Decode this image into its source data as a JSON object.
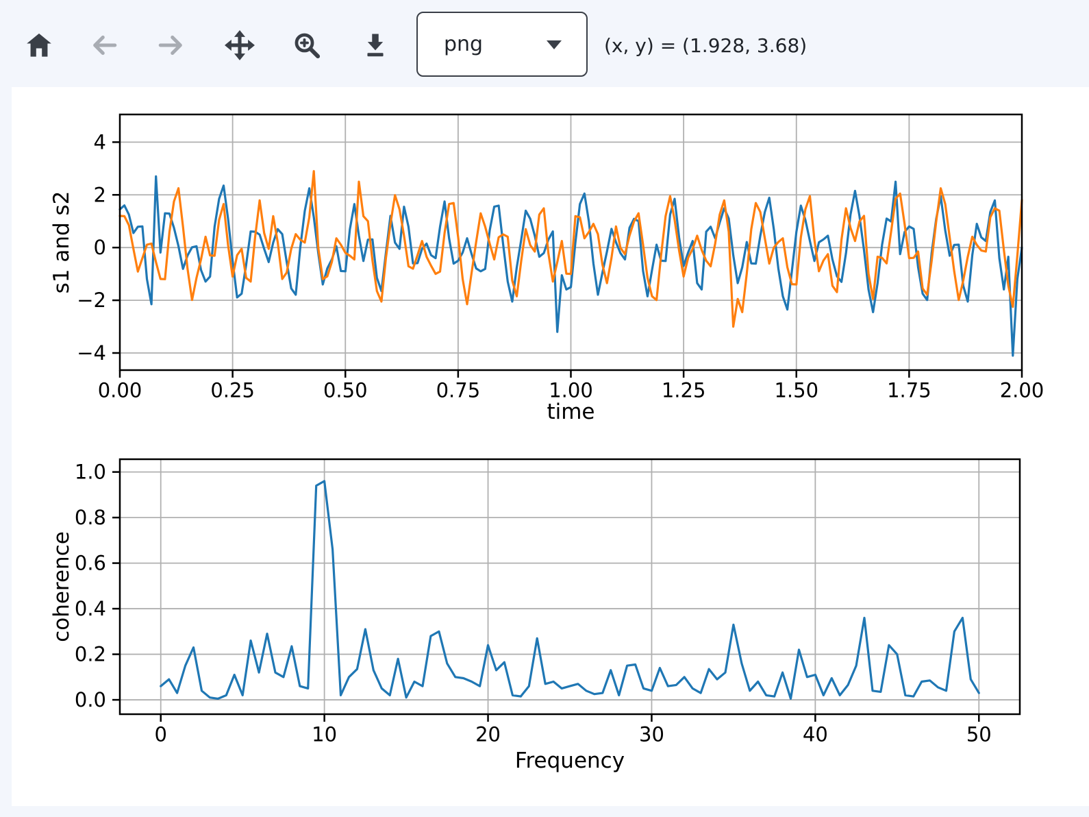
{
  "toolbar": {
    "buttons": [
      {
        "name": "home",
        "icon": "home-icon",
        "enabled": true
      },
      {
        "name": "back",
        "icon": "arrow-left-icon",
        "enabled": false
      },
      {
        "name": "forward",
        "icon": "arrow-right-icon",
        "enabled": false
      },
      {
        "name": "pan",
        "icon": "move-icon",
        "enabled": true
      },
      {
        "name": "zoom",
        "icon": "zoom-in-icon",
        "enabled": true
      },
      {
        "name": "download",
        "icon": "download-icon",
        "enabled": true
      }
    ],
    "format_select": {
      "value": "png"
    },
    "coordinate_readout": "(x, y) = (1.928, 3.68)"
  },
  "colors": {
    "page_background": "#f3f6fc",
    "figure_background": "#ffffff",
    "icon_active": "#3a3f47",
    "icon_disabled": "#a8acb3",
    "grid": "#b0b0b0",
    "spine": "#000000",
    "series_blue": "#1f77b4",
    "series_orange": "#ff7f0e"
  },
  "chart_data": [
    {
      "type": "line",
      "title": "",
      "xlabel": "time",
      "ylabel": "s1 and s2",
      "xlim": [
        0,
        2
      ],
      "ylim": [
        -4.65,
        5.05
      ],
      "grid": true,
      "legend": "none",
      "xticks": {
        "values": [
          0,
          0.25,
          0.5,
          0.75,
          1.0,
          1.25,
          1.5,
          1.75,
          2.0
        ],
        "labels": [
          "0.00",
          "0.25",
          "0.50",
          "0.75",
          "1.00",
          "1.25",
          "1.50",
          "1.75",
          "2.00"
        ]
      },
      "yticks": {
        "values": [
          -4,
          -2,
          0,
          2,
          4
        ],
        "labels": [
          "−4",
          "−2",
          "0",
          "2",
          "4"
        ]
      },
      "x_start": 0,
      "x_step": 0.01,
      "series": [
        {
          "name": "s1",
          "color": "#1f77b4",
          "values": [
            1.45,
            1.6,
            1.25,
            0.55,
            0.79,
            0.8,
            -1.19,
            -2.15,
            2.7,
            -0.19,
            1.3,
            1.29,
            0.75,
            0.05,
            -0.81,
            -0.3,
            0.01,
            0.05,
            -0.85,
            -1.29,
            -1.1,
            0.79,
            1.85,
            2.35,
            1.09,
            -0.5,
            -1.89,
            -1.75,
            -0.65,
            0.61,
            0.6,
            0.49,
            -0.05,
            -0.55,
            0.19,
            0.7,
            0.51,
            -0.55,
            -1.55,
            -1.79,
            0.0,
            1.39,
            2.25,
            1.15,
            -0.21,
            -1.4,
            -0.79,
            -0.45,
            0.05,
            -0.89,
            -0.9,
            0.69,
            1.65,
            0.45,
            -0.51,
            0.3,
            0.31,
            -1.15,
            -1.65,
            -0.19,
            1.2,
            0.19,
            -0.05,
            1.55,
            0.79,
            -0.6,
            -0.59,
            -0.05,
            0.15,
            -0.29,
            -0.4,
            0.79,
            1.75,
            0.35,
            -0.61,
            -0.5,
            -0.19,
            0.35,
            -0.25,
            -0.79,
            -0.9,
            -0.81,
            0.65,
            1.55,
            1.59,
            0.1,
            -1.29,
            -2.05,
            -0.75,
            0.31,
            1.4,
            1.09,
            0.45,
            -0.35,
            -0.21,
            0.3,
            0.61,
            -3.2,
            -1.05,
            -1.59,
            -1.5,
            0.19,
            1.65,
            2.05,
            0.99,
            -0.6,
            -1.79,
            -0.95,
            -0.15,
            0.71,
            0.2,
            -0.21,
            -0.45,
            0.75,
            1.09,
            1.0,
            -0.89,
            -1.85,
            -0.85,
            0.11,
            -0.5,
            -0.51,
            1.25,
            1.85,
            0.39,
            -0.7,
            -0.19,
            0.25,
            -1.35,
            -1.59,
            0.6,
            0.79,
            0.35,
            0.95,
            1.49,
            1.1,
            -0.29,
            -1.35,
            -0.75,
            0.21,
            -0.6,
            -0.61,
            0.45,
            1.35,
            1.89,
            0.7,
            -0.79,
            -1.85,
            -2.35,
            -0.89,
            0.6,
            1.59,
            1.05,
            0.25,
            -0.51,
            0.2,
            0.31,
            0.45,
            -0.45,
            -1.09,
            -1.3,
            -0.21,
            1.25,
            2.15,
            1.19,
            -0.1,
            -1.59,
            -2.45,
            -1.35,
            0.11,
            1.1,
            0.99,
            2.5,
            -0.25,
            0.59,
            0.8,
            0.71,
            -0.75,
            -1.75,
            -1.99,
            -0.2,
            1.09,
            1.95,
            0.65,
            -0.31,
            0.1,
            0.11,
            -1.45,
            -2.05,
            -0.29,
            0.9,
            0.39,
            0.25,
            1.35,
            1.79,
            -0.4,
            -1.59,
            -0.35,
            -4.1,
            -1.19,
            0.0
          ]
        },
        {
          "name": "s2",
          "color": "#ff7f0e",
          "values": [
            1.2,
            1.19,
            0.85,
            -0.05,
            -0.91,
            -0.4,
            0.11,
            0.15,
            -0.55,
            -1.19,
            -1.2,
            0.59,
            1.75,
            2.25,
            0.79,
            -0.8,
            -1.99,
            -1.15,
            -0.45,
            0.41,
            -0.3,
            -0.31,
            1.05,
            1.65,
            0.09,
            -1.1,
            -0.29,
            -0.05,
            -1.15,
            -1.29,
            0.4,
            1.79,
            0.55,
            -0.05,
            1.19,
            0.2,
            -1.19,
            -0.95,
            -0.05,
            0.51,
            0.3,
            0.19,
            1.15,
            2.9,
            -0.01,
            -1.2,
            -1.09,
            -0.55,
            0.35,
            0.11,
            -0.2,
            -0.31,
            -0.45,
            2.5,
            1.19,
            1.0,
            -0.49,
            -1.65,
            -2.05,
            -0.39,
            0.9,
            1.99,
            1.45,
            0.45,
            -0.71,
            -0.8,
            -0.29,
            0.25,
            -0.35,
            -0.69,
            -1.0,
            -0.91,
            0.55,
            1.65,
            1.69,
            0.4,
            -1.19,
            -2.15,
            -0.95,
            0.21,
            1.3,
            0.79,
            0.15,
            -0.45,
            0.39,
            0.5,
            0.41,
            -1.25,
            -1.85,
            -0.49,
            0.7,
            0.09,
            -0.15,
            1.25,
            1.49,
            -0.2,
            -1.29,
            -0.55,
            0.25,
            -0.99,
            -1.0,
            1.19,
            1.15,
            0.35,
            0.59,
            0.9,
            0.51,
            -0.65,
            -1.35,
            -0.39,
            0.8,
            -0.01,
            -0.25,
            0.45,
            0.99,
            1.3,
            0.11,
            -1.15,
            -1.85,
            -1.99,
            -0.3,
            1.19,
            1.95,
            1.05,
            -0.11,
            -1.1,
            -0.39,
            -0.05,
            0.45,
            -0.09,
            -0.5,
            -0.71,
            0.15,
            1.25,
            1.79,
            0.6,
            -3.0,
            -1.95,
            -2.45,
            -0.99,
            0.7,
            1.69,
            1.35,
            0.35,
            -0.61,
            0.0,
            0.21,
            0.35,
            -0.75,
            -1.39,
            -1.4,
            0.39,
            1.45,
            1.95,
            0.29,
            -0.9,
            -0.49,
            -0.25,
            -1.45,
            -1.69,
            0.3,
            1.49,
            0.75,
            0.25,
            0.99,
            1.2,
            -0.99,
            -1.95,
            -0.35,
            -0.39,
            -0.6,
            0.59,
            1.85,
            2.05,
            0.89,
            -0.4,
            -0.39,
            -0.15,
            -1.55,
            -1.79,
            -0.5,
            0.99,
            2.25,
            1.65,
            0.39,
            -0.9,
            -1.99,
            -1.25,
            -0.35,
            0.41,
            0.1,
            -0.11,
            -0.15,
            1.15,
            1.49,
            1.4,
            -0.09,
            -1.45,
            -2.25,
            -0.3,
            1.8
          ]
        }
      ]
    },
    {
      "type": "line",
      "title": "",
      "xlabel": "Frequency",
      "ylabel": "coherence",
      "xlim": [
        -2.5,
        52.5
      ],
      "ylim": [
        -0.063,
        1.056
      ],
      "grid": true,
      "legend": "none",
      "xticks": {
        "values": [
          0,
          10,
          20,
          30,
          40,
          50
        ],
        "labels": [
          "0",
          "10",
          "20",
          "30",
          "40",
          "50"
        ]
      },
      "yticks": {
        "values": [
          0,
          0.2,
          0.4,
          0.6,
          0.8,
          1.0
        ],
        "labels": [
          "0.0",
          "0.2",
          "0.4",
          "0.6",
          "0.8",
          "1.0"
        ]
      },
      "x_start": 0,
      "x_step": 0.5,
      "series": [
        {
          "name": "coherence",
          "color": "#1f77b4",
          "values": [
            0.06,
            0.09,
            0.03,
            0.15,
            0.23,
            0.04,
            0.01,
            0.005,
            0.02,
            0.11,
            0.02,
            0.26,
            0.12,
            0.29,
            0.12,
            0.1,
            0.235,
            0.06,
            0.05,
            0.94,
            0.96,
            0.66,
            0.02,
            0.1,
            0.135,
            0.31,
            0.13,
            0.05,
            0.02,
            0.18,
            0.01,
            0.08,
            0.06,
            0.28,
            0.3,
            0.16,
            0.1,
            0.095,
            0.08,
            0.06,
            0.24,
            0.13,
            0.165,
            0.02,
            0.015,
            0.06,
            0.27,
            0.07,
            0.08,
            0.05,
            0.06,
            0.07,
            0.04,
            0.025,
            0.03,
            0.13,
            0.02,
            0.15,
            0.155,
            0.05,
            0.04,
            0.14,
            0.06,
            0.065,
            0.1,
            0.05,
            0.03,
            0.135,
            0.09,
            0.12,
            0.33,
            0.16,
            0.04,
            0.08,
            0.02,
            0.015,
            0.12,
            0.005,
            0.22,
            0.1,
            0.11,
            0.02,
            0.095,
            0.02,
            0.065,
            0.15,
            0.36,
            0.04,
            0.035,
            0.24,
            0.2,
            0.02,
            0.015,
            0.08,
            0.085,
            0.055,
            0.04,
            0.3,
            0.36,
            0.09,
            0.03
          ]
        }
      ]
    }
  ]
}
